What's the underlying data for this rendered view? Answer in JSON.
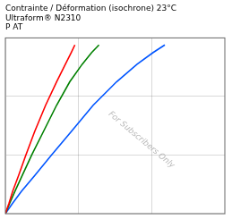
{
  "chart_data": {
    "type": "line",
    "title": [
      "Contrainte / Déformation (isochrone) 23°C",
      "Ultraform® N2310",
      "P AT"
    ],
    "annotations": [
      "For Subscribers Only"
    ],
    "series": [
      {
        "color": "#ff0000",
        "x": [
          0.0,
          0.05,
          0.1,
          0.18,
          0.28,
          0.4,
          0.55,
          0.7,
          0.82,
          0.9,
          0.95
        ],
        "values": [
          0.0,
          0.18,
          0.38,
          0.65,
          1.0,
          1.4,
          1.85,
          2.25,
          2.55,
          2.75,
          2.88
        ]
      },
      {
        "color": "#008000",
        "x": [
          0.0,
          0.06,
          0.13,
          0.23,
          0.36,
          0.52,
          0.7,
          0.88,
          1.05,
          1.18,
          1.28
        ],
        "values": [
          0.0,
          0.18,
          0.38,
          0.65,
          1.0,
          1.4,
          1.85,
          2.25,
          2.55,
          2.75,
          2.88
        ]
      },
      {
        "color": "#0055ff",
        "x": [
          0.0,
          0.1,
          0.22,
          0.4,
          0.63,
          0.9,
          1.2,
          1.52,
          1.8,
          2.02,
          2.18
        ],
        "values": [
          0.0,
          0.18,
          0.38,
          0.65,
          1.0,
          1.4,
          1.85,
          2.25,
          2.55,
          2.75,
          2.88
        ]
      }
    ],
    "xlim": [
      0,
      3
    ],
    "ylim": [
      0,
      3
    ],
    "xticks": [
      1,
      2
    ],
    "yticks": [
      1,
      2
    ],
    "grid": true,
    "tick_labels": false
  }
}
